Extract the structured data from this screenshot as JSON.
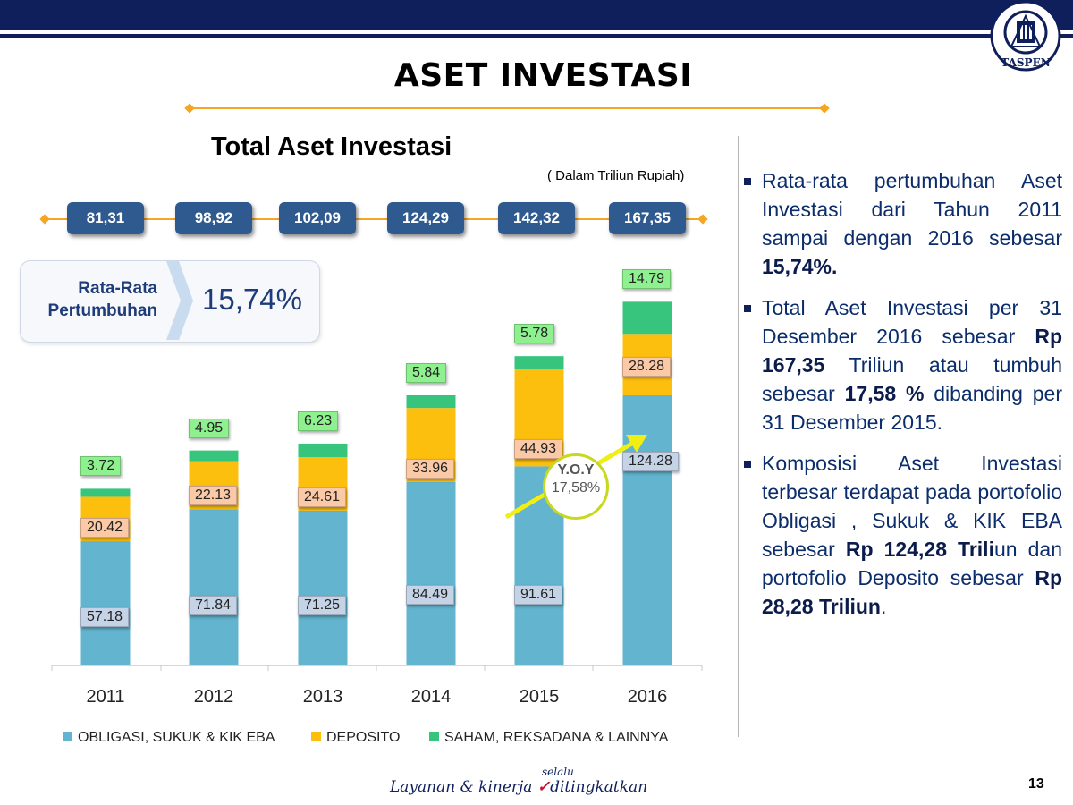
{
  "header": {
    "title": "ASET INVESTASI",
    "logo_text": "TASPEN"
  },
  "chart": {
    "title": "Total Aset Investasi",
    "unit_note": "( Dalam Triliun Rupiah)",
    "totals": [
      "81,31",
      "98,92",
      "102,09",
      "124,29",
      "142,32",
      "167,35"
    ],
    "growth": {
      "label_line1": "Rata-Rata",
      "label_line2": "Pertumbuhan",
      "value": "15,74%"
    },
    "yoy": {
      "label": "Y.O.Y",
      "value": "17,58%"
    },
    "legend": [
      "OBLIGASI, SUKUK & KIK EBA",
      "DEPOSITO",
      "SAHAM, REKSADANA & LAINNYA"
    ]
  },
  "chart_data": {
    "type": "bar",
    "stacked": true,
    "categories": [
      "2011",
      "2012",
      "2013",
      "2014",
      "2015",
      "2016"
    ],
    "series": [
      {
        "name": "OBLIGASI, SUKUK & KIK EBA",
        "color": "#62b4cf",
        "values": [
          57.18,
          71.84,
          71.25,
          84.49,
          91.61,
          124.28
        ],
        "labels": [
          "57.18",
          "71.84",
          "71.25",
          "84.49",
          "91.61",
          "124.28"
        ]
      },
      {
        "name": "DEPOSITO",
        "color": "#fcbf0e",
        "values": [
          20.42,
          22.13,
          24.61,
          33.96,
          44.93,
          28.28
        ],
        "labels": [
          "20.42",
          "22.13",
          "24.61",
          "33.96",
          "44.93",
          "28.28"
        ]
      },
      {
        "name": "SAHAM, REKSADANA & LAINNYA",
        "color": "#37c57d",
        "values": [
          3.72,
          4.95,
          6.23,
          5.84,
          5.78,
          14.79
        ],
        "labels": [
          "3.72",
          "4.95",
          "6.23",
          "5.84",
          "5.78",
          "14.79"
        ]
      }
    ],
    "ylim": [
      0,
      180
    ],
    "grid": false,
    "legend_position": "bottom"
  },
  "bullets": [
    [
      {
        "t": "Rata-rata pertumbuhan Aset Investasi dari Tahun 2011 sampai dengan 2016 sebesar "
      },
      {
        "t": "15,74%.",
        "b": true
      }
    ],
    [
      {
        "t": "Total Aset Investasi per 31 Desember 2016 sebesar "
      },
      {
        "t": "Rp 167,35",
        "b": true
      },
      {
        "t": " Triliun atau tumbuh sebesar "
      },
      {
        "t": "17,58 %",
        "b": true
      },
      {
        "t": " dibanding per 31 Desember 2015."
      }
    ],
    [
      {
        "t": "Komposisi Aset Investasi terbesar terdapat pada portofolio Obligasi , Sukuk & KIK EBA sebesar "
      },
      {
        "t": "Rp 124,28 Trili",
        "b": true
      },
      {
        "t": "un dan portofolio Deposito sebesar "
      },
      {
        "t": "Rp 28,28 Triliun",
        "b": true
      },
      {
        "t": "."
      }
    ]
  ],
  "footer": {
    "page": "13",
    "slogan_part1": "Layanan & kinerja ",
    "slogan_small": "selalu",
    "slogan_check": "✓",
    "slogan_part2": "ditingkatkan"
  }
}
